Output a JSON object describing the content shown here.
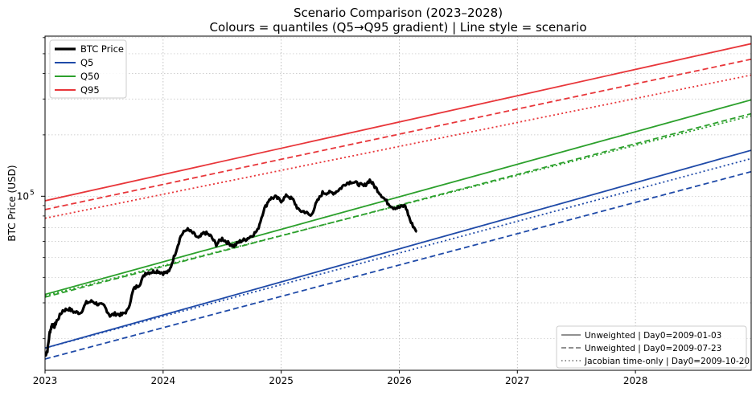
{
  "chart_data": {
    "type": "line",
    "title": "Scenario Comparison (2023–2028)",
    "subtitle": "Colours = quantiles (Q5→Q95 gradient) | Line style = scenario",
    "xlabel": "",
    "ylabel": "BTC Price (USD)",
    "yscale": "log",
    "xlim": [
      2023.0,
      2028.98
    ],
    "ylim": [
      14000,
      610000
    ],
    "grid": true,
    "x_ticks": [
      2023,
      2024,
      2025,
      2026,
      2027,
      2028
    ],
    "x_tick_labels": [
      "2023",
      "2024",
      "2025",
      "2026",
      "2027",
      "2028"
    ],
    "y_ticks": [
      100000
    ],
    "y_tick_labels": [
      "10"
    ],
    "y_tick_exponents": [
      "5"
    ],
    "legend_quantiles": {
      "position": "top-left",
      "entries": [
        {
          "name": "BTC Price",
          "color": "#000000"
        },
        {
          "name": "Q5",
          "color": "#1f4aa8"
        },
        {
          "name": "Q50",
          "color": "#2ca02c"
        },
        {
          "name": "Q95",
          "color": "#e8363a"
        }
      ]
    },
    "legend_scenarios": {
      "position": "bottom-right",
      "entries": [
        {
          "name": "Unweighted | Day0=2009-01-03",
          "dash": "solid"
        },
        {
          "name": "Unweighted | Day0=2009-07-23",
          "dash": "dashed"
        },
        {
          "name": "Jacobian time-only | Day0=2009-10-20",
          "dash": "dotted"
        }
      ]
    },
    "btc_price": {
      "name": "BTC Price",
      "color": "#000000",
      "x": [
        2023.0,
        2023.02,
        2023.04,
        2023.06,
        2023.08,
        2023.1,
        2023.15,
        2023.2,
        2023.25,
        2023.3,
        2023.35,
        2023.4,
        2023.45,
        2023.5,
        2023.55,
        2023.6,
        2023.65,
        2023.7,
        2023.75,
        2023.8,
        2023.85,
        2023.9,
        2023.95,
        2024.0,
        2024.05,
        2024.1,
        2024.15,
        2024.2,
        2024.25,
        2024.3,
        2024.35,
        2024.4,
        2024.45,
        2024.5,
        2024.55,
        2024.6,
        2024.65,
        2024.7,
        2024.75,
        2024.8,
        2024.85,
        2024.9,
        2024.95,
        2025.0,
        2025.05,
        2025.1,
        2025.15,
        2025.2,
        2025.25,
        2025.3,
        2025.35,
        2025.4,
        2025.45,
        2025.5,
        2025.55,
        2025.6,
        2025.65,
        2025.7,
        2025.75,
        2025.8,
        2025.85,
        2025.9,
        2025.95,
        2026.0,
        2026.05,
        2026.1,
        2026.15
      ],
      "values": [
        16500,
        17500,
        21500,
        23500,
        23000,
        24500,
        27500,
        28000,
        27000,
        26800,
        30000,
        30500,
        29500,
        29000,
        26000,
        26500,
        26200,
        27500,
        35000,
        37000,
        42000,
        42500,
        43000,
        42000,
        42500,
        52000,
        64000,
        69000,
        66000,
        62000,
        66500,
        64000,
        58000,
        62000,
        59000,
        57000,
        60000,
        61500,
        64000,
        68000,
        85000,
        97000,
        99000,
        95000,
        101000,
        96000,
        85000,
        84000,
        80000,
        93000,
        104000,
        104000,
        104000,
        109000,
        116000,
        118000,
        115000,
        112000,
        120000,
        110000,
        101000,
        93000,
        88000,
        88000,
        90000,
        74000,
        67000
      ]
    },
    "series": [
      {
        "name": "Q5",
        "scenario": "Unweighted | Day0=2009-01-03",
        "color": "#1f4aa8",
        "dash": "solid",
        "x": [
          2023.0,
          2028.98
        ],
        "values": [
          18000,
          168000
        ]
      },
      {
        "name": "Q5",
        "scenario": "Unweighted | Day0=2009-07-23",
        "color": "#1f4aa8",
        "dash": "dashed",
        "x": [
          2023.0,
          2028.98
        ],
        "values": [
          15900,
          132000
        ]
      },
      {
        "name": "Q5",
        "scenario": "Jacobian time-only | Day0=2009-10-20",
        "color": "#1f4aa8",
        "dash": "dotted",
        "x": [
          2023.0,
          2028.98
        ],
        "values": [
          18000,
          153000
        ]
      },
      {
        "name": "Q50",
        "scenario": "Unweighted | Day0=2009-01-03",
        "color": "#2ca02c",
        "dash": "solid",
        "x": [
          2023.0,
          2028.98
        ],
        "values": [
          33000,
          297000
        ]
      },
      {
        "name": "Q50",
        "scenario": "Unweighted | Day0=2009-07-23",
        "color": "#2ca02c",
        "dash": "dashed",
        "x": [
          2023.0,
          2028.98
        ],
        "values": [
          32000,
          254000
        ]
      },
      {
        "name": "Q50",
        "scenario": "Jacobian time-only | Day0=2009-10-20",
        "color": "#2ca02c",
        "dash": "dotted",
        "x": [
          2023.0,
          2028.98
        ],
        "values": [
          32500,
          248000
        ]
      },
      {
        "name": "Q95",
        "scenario": "Unweighted | Day0=2009-01-03",
        "color": "#e8363a",
        "dash": "solid",
        "x": [
          2023.0,
          2028.98
        ],
        "values": [
          95000,
          560000
        ]
      },
      {
        "name": "Q95",
        "scenario": "Unweighted | Day0=2009-07-23",
        "color": "#e8363a",
        "dash": "dashed",
        "x": [
          2023.0,
          2028.98
        ],
        "values": [
          86000,
          470000
        ]
      },
      {
        "name": "Q95",
        "scenario": "Jacobian time-only | Day0=2009-10-20",
        "color": "#e8363a",
        "dash": "dotted",
        "x": [
          2023.0,
          2028.98
        ],
        "values": [
          78000,
          393000
        ]
      }
    ]
  }
}
